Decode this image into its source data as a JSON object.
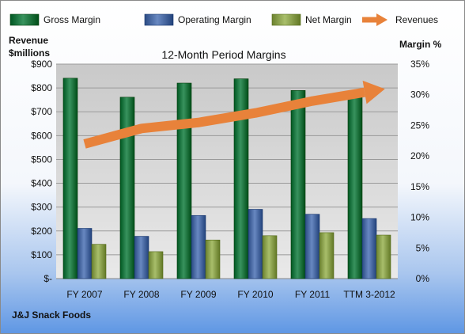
{
  "chart_data": {
    "type": "bar",
    "title": "12-Month Period Margins",
    "company": "J&J Snack Foods",
    "left_axis_title": [
      "Revenue",
      "$millions"
    ],
    "right_axis_title": "Margin %",
    "categories": [
      "FY 2007",
      "FY 2008",
      "FY 2009",
      "FY 2010",
      "FY 2011",
      "TTM 3-2012"
    ],
    "left_ticks": [
      "$-",
      "$100",
      "$200",
      "$300",
      "$400",
      "$500",
      "$600",
      "$700",
      "$800",
      "$900"
    ],
    "right_ticks": [
      "0%",
      "5%",
      "10%",
      "15%",
      "20%",
      "25%",
      "30%",
      "35%"
    ],
    "ylim_left": [
      0,
      900
    ],
    "ylim_right": [
      0,
      35
    ],
    "legend_position": "top",
    "series": [
      {
        "name": "Gross Margin",
        "axis": "right",
        "color": "#1f7a45",
        "values": [
          32.7,
          29.6,
          31.9,
          32.6,
          30.7,
          30.0
        ]
      },
      {
        "name": "Operating Margin",
        "axis": "right",
        "color": "#4f6fa8",
        "values": [
          8.2,
          6.9,
          10.3,
          11.3,
          10.5,
          9.8
        ]
      },
      {
        "name": "Net Margin",
        "axis": "right",
        "color": "#8fa552",
        "values": [
          5.6,
          4.4,
          6.3,
          7.0,
          7.5,
          7.1
        ]
      },
      {
        "name": "Revenues",
        "axis": "left",
        "type": "line",
        "color": "#e8823a",
        "values": [
          565,
          630,
          655,
          695,
          745,
          785
        ]
      }
    ]
  }
}
